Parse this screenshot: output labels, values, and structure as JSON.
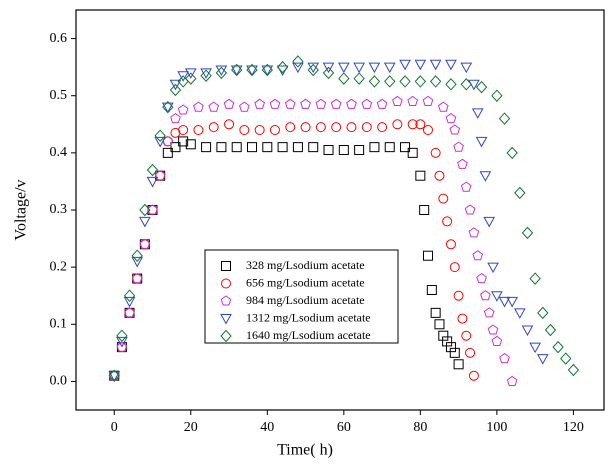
{
  "chart_data": {
    "type": "scatter",
    "x_label": "Time( h)",
    "y_label": "Voltage/v",
    "xlim": [
      -10,
      128
    ],
    "ylim": [
      -0.05,
      0.65
    ],
    "xticks": [
      0,
      20,
      40,
      60,
      80,
      100,
      120
    ],
    "yticks": [
      {
        "value": 0,
        "label": "0.0"
      },
      0.1,
      0.2,
      0.3,
      0.4,
      0.5,
      0.6
    ],
    "series": [
      {
        "name": "328 mg/Lsodium acetate",
        "color": "#000000",
        "marker": "square",
        "x": [
          0,
          2,
          4,
          6,
          8,
          10,
          12,
          14,
          16,
          18,
          20,
          24,
          28,
          32,
          36,
          40,
          44,
          48,
          52,
          56,
          60,
          64,
          68,
          72,
          76,
          78,
          80,
          81,
          82,
          83,
          84,
          85,
          86,
          87,
          88,
          89,
          90
        ],
        "values": [
          0.01,
          0.06,
          0.12,
          0.18,
          0.24,
          0.3,
          0.36,
          0.4,
          0.41,
          0.42,
          0.415,
          0.41,
          0.41,
          0.41,
          0.41,
          0.41,
          0.41,
          0.41,
          0.41,
          0.405,
          0.405,
          0.405,
          0.41,
          0.41,
          0.41,
          0.4,
          0.36,
          0.3,
          0.22,
          0.16,
          0.12,
          0.1,
          0.08,
          0.07,
          0.06,
          0.05,
          0.03
        ]
      },
      {
        "name": "656 mg/Lsodium acetate",
        "color": "#ff0000",
        "marker": "circle",
        "x": [
          0,
          2,
          4,
          6,
          8,
          10,
          12,
          14,
          16,
          18,
          22,
          26,
          30,
          34,
          38,
          42,
          46,
          50,
          54,
          58,
          62,
          66,
          70,
          74,
          78,
          80,
          82,
          84,
          85,
          86,
          87,
          88,
          89,
          90,
          91,
          92,
          93,
          94
        ],
        "values": [
          0.01,
          0.06,
          0.12,
          0.18,
          0.24,
          0.3,
          0.36,
          0.42,
          0.435,
          0.44,
          0.44,
          0.445,
          0.45,
          0.44,
          0.44,
          0.44,
          0.445,
          0.445,
          0.445,
          0.445,
          0.445,
          0.445,
          0.445,
          0.45,
          0.45,
          0.45,
          0.44,
          0.4,
          0.36,
          0.32,
          0.28,
          0.24,
          0.2,
          0.15,
          0.11,
          0.08,
          0.05,
          0.01
        ]
      },
      {
        "name": "984 mg/Lsodium acetate",
        "color": "#cc33cc",
        "marker": "pentagon",
        "x": [
          0,
          2,
          4,
          6,
          8,
          10,
          12,
          14,
          16,
          18,
          22,
          26,
          30,
          34,
          38,
          42,
          46,
          50,
          54,
          58,
          62,
          66,
          70,
          74,
          78,
          82,
          86,
          88,
          89,
          90,
          91,
          92,
          93,
          94,
          95,
          96,
          97,
          98,
          99,
          100,
          102,
          104
        ],
        "values": [
          0.01,
          0.06,
          0.12,
          0.18,
          0.24,
          0.3,
          0.36,
          0.42,
          0.46,
          0.475,
          0.48,
          0.48,
          0.485,
          0.48,
          0.485,
          0.485,
          0.485,
          0.485,
          0.485,
          0.485,
          0.485,
          0.485,
          0.485,
          0.49,
          0.49,
          0.49,
          0.48,
          0.46,
          0.44,
          0.41,
          0.38,
          0.34,
          0.3,
          0.26,
          0.22,
          0.18,
          0.15,
          0.12,
          0.09,
          0.07,
          0.04,
          0.0
        ]
      },
      {
        "name": "1312 mg/Lsodium acetate",
        "color": "#3344cc",
        "marker": "triangle",
        "x": [
          0,
          2,
          4,
          6,
          8,
          10,
          12,
          14,
          16,
          18,
          20,
          24,
          28,
          32,
          36,
          40,
          44,
          48,
          52,
          56,
          60,
          64,
          68,
          72,
          76,
          80,
          84,
          88,
          92,
          94,
          95,
          96,
          97,
          98,
          99,
          100,
          102,
          104,
          106,
          108,
          110,
          112
        ],
        "values": [
          0.01,
          0.07,
          0.14,
          0.21,
          0.28,
          0.35,
          0.42,
          0.48,
          0.52,
          0.535,
          0.54,
          0.54,
          0.545,
          0.545,
          0.545,
          0.545,
          0.545,
          0.55,
          0.55,
          0.55,
          0.55,
          0.55,
          0.55,
          0.55,
          0.555,
          0.555,
          0.555,
          0.555,
          0.55,
          0.52,
          0.47,
          0.42,
          0.36,
          0.28,
          0.2,
          0.15,
          0.14,
          0.14,
          0.12,
          0.09,
          0.06,
          0.04
        ]
      },
      {
        "name": "1640 mg/Lsodium acetate",
        "color": "#117733",
        "marker": "diamond",
        "x": [
          0,
          2,
          4,
          6,
          8,
          10,
          12,
          14,
          16,
          18,
          20,
          24,
          28,
          32,
          36,
          40,
          44,
          48,
          52,
          56,
          60,
          64,
          68,
          72,
          76,
          80,
          84,
          88,
          92,
          96,
          100,
          102,
          104,
          106,
          108,
          110,
          112,
          114,
          116,
          118,
          120
        ],
        "values": [
          0.01,
          0.08,
          0.15,
          0.22,
          0.3,
          0.37,
          0.43,
          0.48,
          0.51,
          0.525,
          0.53,
          0.535,
          0.54,
          0.545,
          0.545,
          0.545,
          0.55,
          0.56,
          0.545,
          0.54,
          0.53,
          0.53,
          0.525,
          0.525,
          0.525,
          0.525,
          0.525,
          0.52,
          0.52,
          0.515,
          0.5,
          0.46,
          0.4,
          0.33,
          0.26,
          0.18,
          0.12,
          0.09,
          0.06,
          0.04,
          0.02
        ]
      }
    ]
  }
}
